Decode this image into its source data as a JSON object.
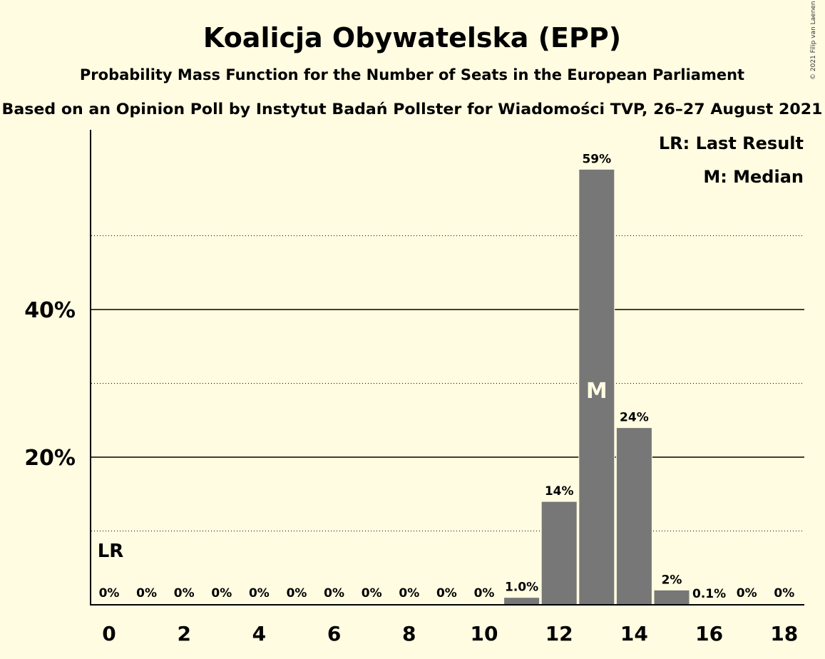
{
  "chart_data": {
    "type": "bar",
    "title": "Koalicja Obywatelska (EPP)",
    "subtitle": "Probability Mass Function for the Number of Seats in the European Parliament",
    "subtitle2": "Based on an Opinion Poll by Instytut Badań Pollster for Wiadomości TVP, 26–27 August 2021",
    "copyright": "© 2021 Filip van Laenen",
    "x": [
      0,
      1,
      2,
      3,
      4,
      5,
      6,
      7,
      8,
      9,
      10,
      11,
      12,
      13,
      14,
      15,
      16,
      17,
      18
    ],
    "values": [
      0,
      0,
      0,
      0,
      0,
      0,
      0,
      0,
      0,
      0,
      0,
      1.0,
      14,
      59,
      24,
      2,
      0.1,
      0,
      0
    ],
    "labels": [
      "0%",
      "0%",
      "0%",
      "0%",
      "0%",
      "0%",
      "0%",
      "0%",
      "0%",
      "0%",
      "0%",
      "1.0%",
      "14%",
      "59%",
      "24%",
      "2%",
      "0.1%",
      "0%",
      "0%"
    ],
    "xticks": [
      "0",
      "2",
      "4",
      "6",
      "8",
      "10",
      "12",
      "14",
      "16",
      "18"
    ],
    "yticks": [
      "20%",
      "40%"
    ],
    "ylim": [
      0,
      60
    ],
    "bar_color": "#777777",
    "last_result": 0,
    "median": 13,
    "last_result_marker": "LR",
    "median_marker": "M",
    "legend": [
      "LR: Last Result",
      "M: Median"
    ],
    "legend_position": "top-right",
    "grid": "solid lines at 20% and 40%, dotted lines at 10%, 30% and 50%"
  }
}
